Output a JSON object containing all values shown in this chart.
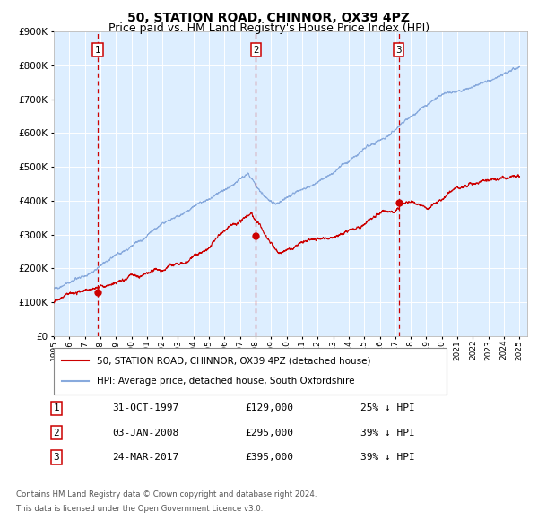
{
  "title": "50, STATION ROAD, CHINNOR, OX39 4PZ",
  "subtitle": "Price paid vs. HM Land Registry's House Price Index (HPI)",
  "title_fontsize": 10,
  "subtitle_fontsize": 9,
  "background_color": "#ffffff",
  "plot_bg_color": "#ddeeff",
  "grid_color": "#ffffff",
  "hpi_color": "#88aadd",
  "price_color": "#cc0000",
  "ylim": [
    0,
    900000
  ],
  "yticks": [
    0,
    100000,
    200000,
    300000,
    400000,
    500000,
    600000,
    700000,
    800000,
    900000
  ],
  "xmin_year": 1995.0,
  "xmax_year": 2025.5,
  "xticks": [
    1995,
    1996,
    1997,
    1998,
    1999,
    2000,
    2001,
    2002,
    2003,
    2004,
    2005,
    2006,
    2007,
    2008,
    2009,
    2010,
    2011,
    2012,
    2013,
    2014,
    2015,
    2016,
    2017,
    2018,
    2019,
    2020,
    2021,
    2022,
    2023,
    2024,
    2025
  ],
  "sale_dates_decimal": [
    1997.83,
    2008.01,
    2017.23
  ],
  "sale_prices": [
    129000,
    295000,
    395000
  ],
  "sale_labels": [
    "1",
    "2",
    "3"
  ],
  "sale_label_dates": [
    "31-OCT-1997",
    "03-JAN-2008",
    "24-MAR-2017"
  ],
  "sale_label_prices": [
    "£129,000",
    "£295,000",
    "£395,000"
  ],
  "sale_label_hpi": [
    "25% ↓ HPI",
    "39% ↓ HPI",
    "39% ↓ HPI"
  ],
  "vline_color": "#cc0000",
  "dot_color": "#cc0000",
  "legend_property_label": "50, STATION ROAD, CHINNOR, OX39 4PZ (detached house)",
  "legend_hpi_label": "HPI: Average price, detached house, South Oxfordshire",
  "footer_line1": "Contains HM Land Registry data © Crown copyright and database right 2024.",
  "footer_line2": "This data is licensed under the Open Government Licence v3.0."
}
